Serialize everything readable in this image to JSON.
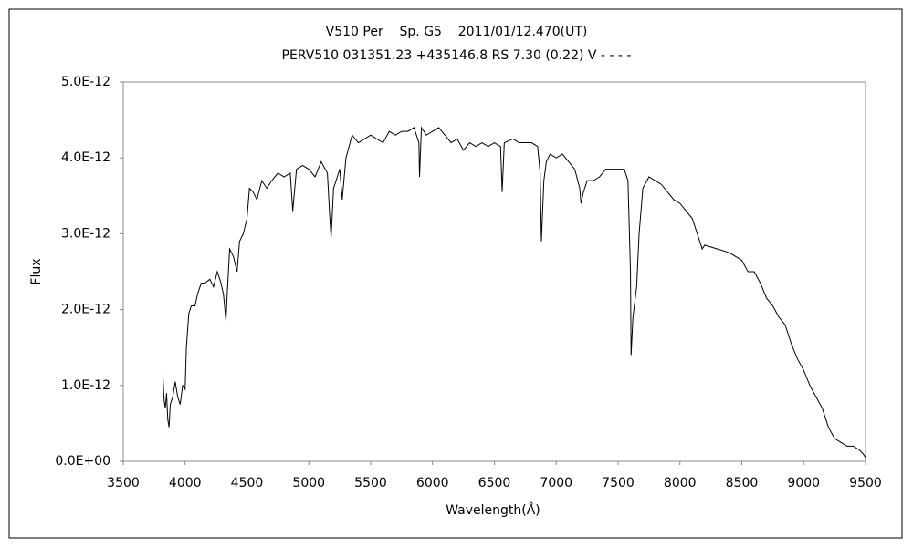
{
  "chart_data": {
    "type": "line",
    "title": "V510 Per    Sp. G5    2011/01/12.470(UT)",
    "subtitle": "PERV510 031351.23 +435146.8 RS 7.30 (0.22) V - - - -",
    "x_label": "Wavelength(Å)",
    "y_label": "Flux",
    "xlim": [
      3500,
      9500
    ],
    "xticks": [
      3500,
      4000,
      4500,
      5000,
      5500,
      6000,
      6500,
      7000,
      7500,
      8000,
      8500,
      9000,
      9500
    ],
    "ylim": [
      0,
      5e-12
    ],
    "yticks": [
      {
        "value": 0,
        "label": "0.0E+00"
      },
      {
        "value": 1e-12,
        "label": "1.0E-12"
      },
      {
        "value": 2e-12,
        "label": "2.0E-12"
      },
      {
        "value": 3e-12,
        "label": "3.0E-12"
      },
      {
        "value": 4e-12,
        "label": "4.0E-12"
      },
      {
        "value": 5e-12,
        "label": "5.0E-12"
      }
    ],
    "grid": false,
    "series": [
      {
        "color": "#000000",
        "x": [
          3820,
          3830,
          3840,
          3850,
          3860,
          3870,
          3880,
          3900,
          3920,
          3940,
          3960,
          3980,
          4000,
          4010,
          4030,
          4050,
          4080,
          4100,
          4130,
          4160,
          4200,
          4230,
          4260,
          4290,
          4310,
          4330,
          4340,
          4360,
          4390,
          4420,
          4440,
          4470,
          4500,
          4520,
          4550,
          4580,
          4620,
          4660,
          4700,
          4750,
          4800,
          4850,
          4870,
          4900,
          4950,
          5000,
          5050,
          5100,
          5150,
          5170,
          5180,
          5200,
          5250,
          5270,
          5300,
          5350,
          5400,
          5450,
          5500,
          5550,
          5600,
          5650,
          5700,
          5750,
          5800,
          5850,
          5890,
          5895,
          5910,
          5950,
          6000,
          6050,
          6100,
          6150,
          6200,
          6250,
          6300,
          6350,
          6400,
          6450,
          6500,
          6550,
          6563,
          6580,
          6650,
          6700,
          6750,
          6800,
          6850,
          6870,
          6880,
          6900,
          6920,
          6950,
          7000,
          7050,
          7100,
          7150,
          7190,
          7200,
          7220,
          7250,
          7300,
          7350,
          7400,
          7450,
          7500,
          7550,
          7580,
          7600,
          7605,
          7620,
          7650,
          7670,
          7700,
          7750,
          7800,
          7850,
          7900,
          7950,
          8000,
          8050,
          8100,
          8150,
          8180,
          8200,
          8300,
          8400,
          8500,
          8550,
          8600,
          8650,
          8700,
          8750,
          8800,
          8850,
          8900,
          8950,
          9000,
          9050,
          9100,
          9150,
          9200,
          9250,
          9300,
          9350,
          9400,
          9450,
          9480,
          9500
        ],
        "values": [
          1.15e-12,
          8e-13,
          7e-13,
          9e-13,
          5.5e-13,
          4.5e-13,
          7.5e-13,
          8.5e-13,
          1.05e-12,
          8.5e-13,
          7.5e-13,
          1e-12,
          9.5e-13,
          1.5e-12,
          1.95e-12,
          2.05e-12,
          2.05e-12,
          2.2e-12,
          2.35e-12,
          2.35e-12,
          2.4e-12,
          2.3e-12,
          2.5e-12,
          2.35e-12,
          2.2e-12,
          1.85e-12,
          2.2e-12,
          2.8e-12,
          2.7e-12,
          2.5e-12,
          2.9e-12,
          3e-12,
          3.2e-12,
          3.6e-12,
          3.55e-12,
          3.45e-12,
          3.7e-12,
          3.6e-12,
          3.7e-12,
          3.8e-12,
          3.75e-12,
          3.8e-12,
          3.3e-12,
          3.85e-12,
          3.9e-12,
          3.85e-12,
          3.75e-12,
          3.95e-12,
          3.8e-12,
          3.2e-12,
          2.95e-12,
          3.6e-12,
          3.85e-12,
          3.45e-12,
          4e-12,
          4.3e-12,
          4.2e-12,
          4.25e-12,
          4.3e-12,
          4.25e-12,
          4.2e-12,
          4.35e-12,
          4.3e-12,
          4.35e-12,
          4.35e-12,
          4.4e-12,
          4.2e-12,
          3.75e-12,
          4.4e-12,
          4.3e-12,
          4.35e-12,
          4.4e-12,
          4.3e-12,
          4.2e-12,
          4.25e-12,
          4.1e-12,
          4.2e-12,
          4.15e-12,
          4.2e-12,
          4.15e-12,
          4.2e-12,
          4.15e-12,
          3.55e-12,
          4.2e-12,
          4.25e-12,
          4.2e-12,
          4.2e-12,
          4.2e-12,
          4.15e-12,
          3.8e-12,
          2.9e-12,
          3.7e-12,
          3.95e-12,
          4.05e-12,
          4e-12,
          4.05e-12,
          3.95e-12,
          3.85e-12,
          3.6e-12,
          3.4e-12,
          3.55e-12,
          3.7e-12,
          3.7e-12,
          3.75e-12,
          3.85e-12,
          3.85e-12,
          3.85e-12,
          3.85e-12,
          3.7e-12,
          2.5e-12,
          1.4e-12,
          1.9e-12,
          2.3e-12,
          3e-12,
          3.6e-12,
          3.75e-12,
          3.7e-12,
          3.65e-12,
          3.55e-12,
          3.45e-12,
          3.4e-12,
          3.3e-12,
          3.2e-12,
          2.95e-12,
          2.8e-12,
          2.85e-12,
          2.8e-12,
          2.75e-12,
          2.65e-12,
          2.5e-12,
          2.5e-12,
          2.35e-12,
          2.15e-12,
          2.05e-12,
          1.9e-12,
          1.8e-12,
          1.55e-12,
          1.35e-12,
          1.2e-12,
          1e-12,
          8.5e-13,
          7e-13,
          4.5e-13,
          3e-13,
          2.5e-13,
          2e-13,
          2e-13,
          1.5e-13,
          1e-13,
          5e-14
        ]
      }
    ]
  }
}
